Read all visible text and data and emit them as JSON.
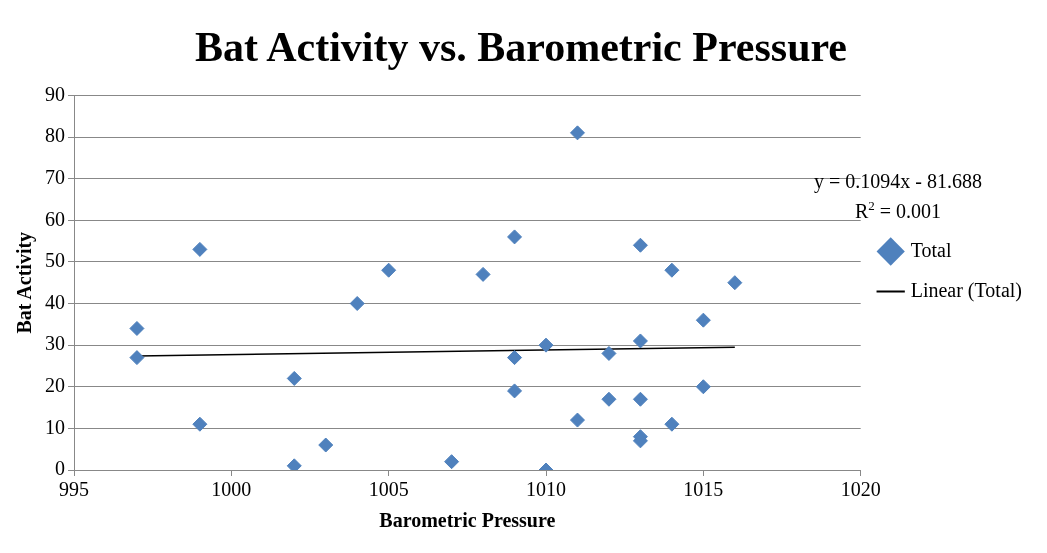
{
  "chart_data": {
    "type": "scatter",
    "title": "Bat Activity vs. Barometric Pressure",
    "xlabel": "Barometric Pressure",
    "ylabel": "Bat Activity",
    "xlim": [
      995,
      1020
    ],
    "xticks": [
      995,
      1000,
      1005,
      1010,
      1015,
      1020
    ],
    "ylim": [
      0,
      90
    ],
    "yticks": [
      0,
      10,
      20,
      30,
      40,
      50,
      60,
      70,
      80,
      90
    ],
    "grid": "y",
    "legend": "right",
    "marker": "diamond",
    "annotations": [
      "y = 0.1094x - 81.688",
      "R$^{2}$ = 0.001"
    ],
    "series": [
      {
        "name": "Total",
        "color": "#4f81bd",
        "x": [
          997,
          997,
          999,
          999,
          1002,
          1002,
          1003,
          1004,
          1005,
          1007,
          1008,
          1009,
          1009,
          1009,
          1010,
          1010,
          1011,
          1011,
          1012,
          1012,
          1013,
          1013,
          1013,
          1013,
          1013,
          1014,
          1014,
          1015,
          1015,
          1016
        ],
        "values": [
          27,
          34,
          53,
          11,
          22,
          1,
          6,
          40,
          48,
          2,
          47,
          56,
          27,
          19,
          30,
          0,
          81,
          12,
          28,
          17,
          54,
          31,
          17,
          8,
          7,
          48,
          11,
          36,
          20,
          45
        ]
      },
      {
        "name": "Linear (Total)",
        "type": "line",
        "color": "#000000",
        "marker": "none",
        "x": [
          997,
          1016
        ],
        "values": [
          27.4,
          29.5
        ]
      }
    ]
  }
}
